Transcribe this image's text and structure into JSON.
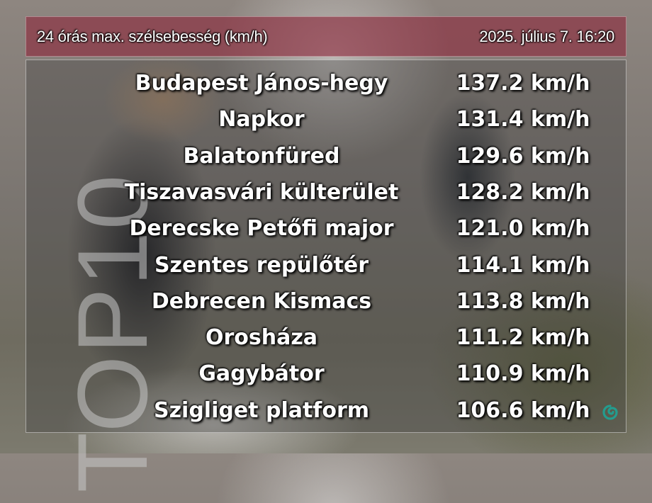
{
  "header": {
    "title": "24 órás max. szélsebesség (km/h)",
    "datetime": "2025. július 7. 16:20"
  },
  "side_label": "TOP10",
  "rows": [
    {
      "name": "Budapest János-hegy",
      "value": "137.2 km/h"
    },
    {
      "name": "Napkor",
      "value": "131.4 km/h"
    },
    {
      "name": "Balatonfüred",
      "value": "129.6 km/h"
    },
    {
      "name": "Tiszavasvári külterület",
      "value": "128.2 km/h"
    },
    {
      "name": "Derecske Petőfi major",
      "value": "121.0 km/h"
    },
    {
      "name": "Szentes repülőtér",
      "value": "114.1 km/h"
    },
    {
      "name": "Debrecen Kismacs",
      "value": "113.8 km/h"
    },
    {
      "name": "Orosháza",
      "value": "111.2 km/h"
    },
    {
      "name": "Gagybátor",
      "value": "110.9 km/h"
    },
    {
      "name": "Szigliget platform",
      "value": "106.6 km/h"
    }
  ],
  "colors": {
    "header_bg": "#8c283c",
    "logo": "#1aa89a"
  },
  "icons": {
    "logo": "swirl-logo-icon"
  }
}
